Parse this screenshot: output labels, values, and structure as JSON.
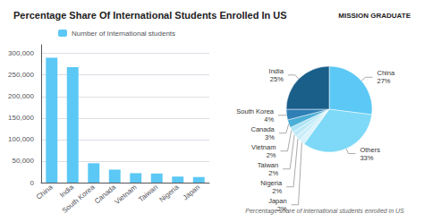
{
  "chart_data": [
    {
      "type": "bar",
      "title": "Percentage Share Of International Students Enrolled In US",
      "annotations": [
        "MISSION GRADUATE"
      ],
      "categories": [
        "China",
        "India",
        "South Korea",
        "Canada",
        "Vietnam",
        "Taiwan",
        "Nigeria",
        "Japan"
      ],
      "series": [
        {
          "name": "Number of International students",
          "color": "#5bc8f5",
          "values": [
            290000,
            268000,
            45000,
            30000,
            22000,
            21000,
            14000,
            13000
          ]
        }
      ],
      "ylim": [
        0,
        320000
      ],
      "yticks": [
        0,
        {
          "value": 50000,
          "label": "50,000"
        },
        {
          "value": 100000,
          "label": "100,000"
        },
        {
          "value": 150000,
          "label": "150,000"
        },
        {
          "value": 200000,
          "label": "200,000"
        },
        {
          "value": 250000,
          "label": "250,000"
        },
        {
          "value": 300000,
          "label": "300,000"
        }
      ],
      "grid": true,
      "legend": "top"
    },
    {
      "type": "pie",
      "title": "Percentage share of international students enrolled in US",
      "categories": [
        "China",
        "Others",
        "Japan",
        "Nigeria",
        "Taiwan",
        "Vietnam",
        "Canada",
        "South Korea",
        "India"
      ],
      "values": [
        27,
        33,
        2,
        2,
        2,
        2,
        3,
        4,
        25
      ],
      "value_labels": [
        "27%",
        "33%",
        "2%",
        "2%",
        "2%",
        "2%",
        "3%",
        "4%",
        "25%"
      ],
      "colors": [
        "#5bc8f5",
        "#7dd9f7",
        "#daf2fc",
        "#cceef9",
        "#bde9f7",
        "#aee4f5",
        "#4aaed6",
        "#2e7fb5",
        "#1a5e8a"
      ],
      "data_labels": true
    }
  ]
}
